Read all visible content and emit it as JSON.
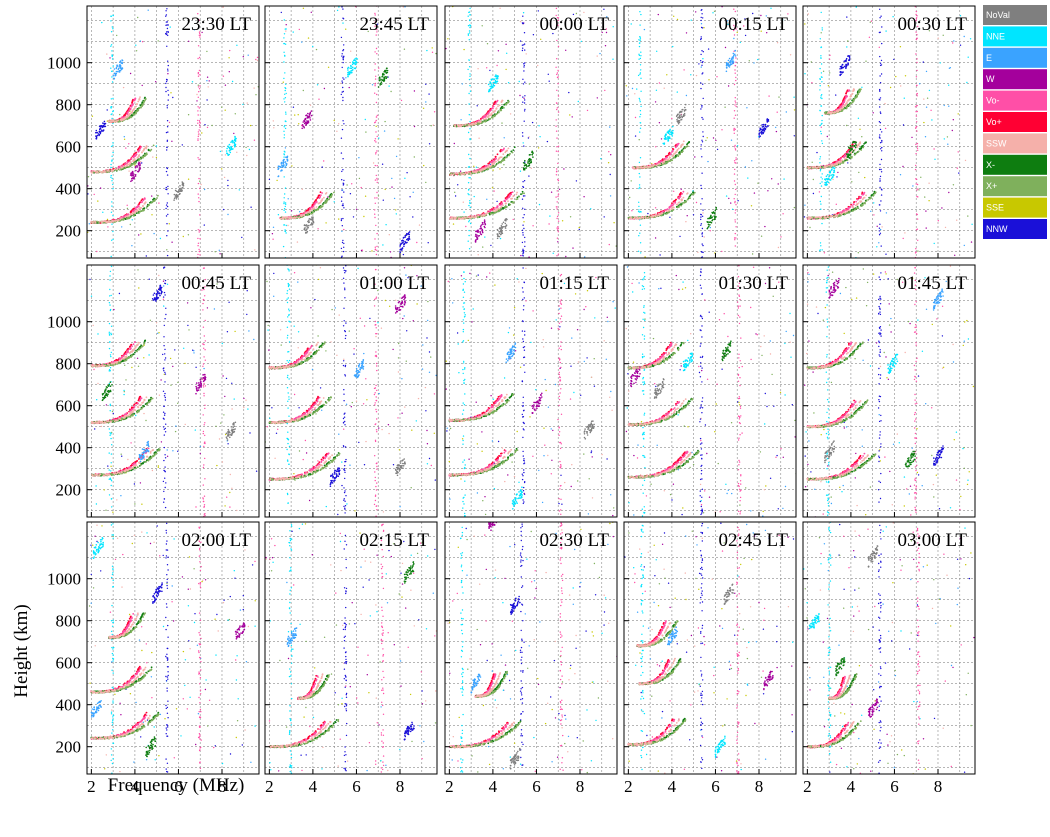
{
  "chart_data": {
    "type": "scatter",
    "subtype": "ionogram small multiples",
    "xlabel": "Frequency (MHz)",
    "ylabel": "Height (km)",
    "xlim": [
      1.8,
      9.7
    ],
    "ylim": [
      70,
      1270
    ],
    "x_ticks": [
      2,
      4,
      6,
      8
    ],
    "y_ticks": [
      200,
      400,
      600,
      800,
      1000
    ],
    "grid": true,
    "legend_position": "right-top",
    "legend": [
      {
        "name": "NoVal",
        "color": "#7f7f7f"
      },
      {
        "name": "NNE",
        "color": "#00e5ff"
      },
      {
        "name": "E",
        "color": "#3aa3ff"
      },
      {
        "name": "W",
        "color": "#a4009c"
      },
      {
        "name": "Vo-",
        "color": "#ff4fa7"
      },
      {
        "name": "Vo+",
        "color": "#ff0033"
      },
      {
        "name": "SSW",
        "color": "#f5b0aa"
      },
      {
        "name": "X-",
        "color": "#0e7d10"
      },
      {
        "name": "X+",
        "color": "#7fb05c"
      },
      {
        "name": "SSE",
        "color": "#c8c800"
      },
      {
        "name": "NNW",
        "color": "#1a10d8"
      }
    ],
    "panels": [
      {
        "label": "23:30 LT",
        "traces": [
          {
            "fmin": 2.0,
            "h0": 240,
            "fc": 4.5
          },
          {
            "fmin": 2.0,
            "h0": 480,
            "fc": 4.3
          },
          {
            "fmin": 2.8,
            "h0": 720,
            "fc": 4.0
          }
        ],
        "blocks": [
          [
            2.2,
            650
          ],
          [
            3.0,
            940
          ],
          [
            3.8,
            450
          ],
          [
            5.8,
            360
          ],
          [
            8.2,
            570
          ]
        ]
      },
      {
        "label": "23:45 LT",
        "traces": [
          {
            "fmin": 2.5,
            "h0": 260,
            "fc": 4.4
          }
        ],
        "blocks": [
          [
            2.4,
            480
          ],
          [
            3.5,
            700
          ],
          [
            3.6,
            200
          ],
          [
            5.6,
            950
          ],
          [
            7.0,
            900
          ],
          [
            8.0,
            120
          ]
        ]
      },
      {
        "label": "00:00 LT",
        "traces": [
          {
            "fmin": 2.0,
            "h0": 260,
            "fc": 4.9
          },
          {
            "fmin": 2.0,
            "h0": 470,
            "fc": 4.5
          },
          {
            "fmin": 2.2,
            "h0": 700,
            "fc": 4.2
          }
        ],
        "blocks": [
          [
            3.2,
            170
          ],
          [
            4.2,
            180
          ],
          [
            3.8,
            880
          ],
          [
            5.4,
            500
          ]
        ]
      },
      {
        "label": "00:15 LT",
        "traces": [
          {
            "fmin": 2.0,
            "h0": 260,
            "fc": 4.5
          },
          {
            "fmin": 2.2,
            "h0": 500,
            "fc": 4.3
          }
        ],
        "blocks": [
          [
            4.2,
            720
          ],
          [
            3.6,
            620
          ],
          [
            5.6,
            230
          ],
          [
            8.0,
            660
          ],
          [
            6.5,
            980
          ]
        ]
      },
      {
        "label": "00:30 LT",
        "traces": [
          {
            "fmin": 2.0,
            "h0": 260,
            "fc": 4.6
          },
          {
            "fmin": 2.0,
            "h0": 500,
            "fc": 4.2
          },
          {
            "fmin": 2.8,
            "h0": 760,
            "fc": 3.9
          }
        ],
        "blocks": [
          [
            2.8,
            430
          ],
          [
            3.8,
            560
          ],
          [
            3.5,
            960
          ]
        ]
      },
      {
        "label": "00:45 LT",
        "traces": [
          {
            "fmin": 2.0,
            "h0": 270,
            "fc": 4.6
          },
          {
            "fmin": 2.0,
            "h0": 520,
            "fc": 4.3
          },
          {
            "fmin": 2.0,
            "h0": 790,
            "fc": 4.0
          }
        ],
        "blocks": [
          [
            2.5,
            640
          ],
          [
            4.8,
            1100
          ],
          [
            4.2,
            350
          ],
          [
            6.8,
            680
          ],
          [
            8.2,
            450
          ]
        ]
      },
      {
        "label": "01:00 LT",
        "traces": [
          {
            "fmin": 2.0,
            "h0": 250,
            "fc": 4.7
          },
          {
            "fmin": 2.0,
            "h0": 520,
            "fc": 4.3
          },
          {
            "fmin": 2.0,
            "h0": 780,
            "fc": 4.0
          }
        ],
        "blocks": [
          [
            4.8,
            240
          ],
          [
            5.9,
            740
          ],
          [
            7.8,
            1050
          ],
          [
            7.8,
            280
          ]
        ]
      },
      {
        "label": "01:15 LT",
        "traces": [
          {
            "fmin": 2.0,
            "h0": 270,
            "fc": 4.6
          },
          {
            "fmin": 2.0,
            "h0": 530,
            "fc": 4.4
          }
        ],
        "blocks": [
          [
            4.6,
            820
          ],
          [
            5.8,
            580
          ],
          [
            8.2,
            460
          ],
          [
            4.9,
            130
          ]
        ]
      },
      {
        "label": "01:30 LT",
        "traces": [
          {
            "fmin": 2.0,
            "h0": 260,
            "fc": 4.7
          },
          {
            "fmin": 2.0,
            "h0": 510,
            "fc": 4.4
          },
          {
            "fmin": 2.0,
            "h0": 780,
            "fc": 4.0
          }
        ],
        "blocks": [
          [
            2.1,
            710
          ],
          [
            3.2,
            650
          ],
          [
            4.5,
            780
          ],
          [
            6.3,
            830
          ]
        ]
      },
      {
        "label": "01:45 LT",
        "traces": [
          {
            "fmin": 2.0,
            "h0": 250,
            "fc": 4.6
          },
          {
            "fmin": 2.0,
            "h0": 500,
            "fc": 4.2
          },
          {
            "fmin": 2.0,
            "h0": 780,
            "fc": 4.0
          }
        ],
        "blocks": [
          [
            2.8,
            350
          ],
          [
            5.7,
            770
          ],
          [
            6.5,
            310
          ],
          [
            7.8,
            330
          ],
          [
            7.8,
            1080
          ],
          [
            3.0,
            1130
          ]
        ]
      },
      {
        "label": "02:00 LT",
        "traces": [
          {
            "fmin": 2.0,
            "h0": 240,
            "fc": 4.6
          },
          {
            "fmin": 2.0,
            "h0": 460,
            "fc": 4.3
          },
          {
            "fmin": 2.8,
            "h0": 720,
            "fc": 3.9
          }
        ],
        "blocks": [
          [
            2.1,
            1120
          ],
          [
            4.5,
            170
          ],
          [
            4.8,
            900
          ],
          [
            2.0,
            350
          ],
          [
            8.6,
            720
          ]
        ]
      },
      {
        "label": "02:15 LT",
        "traces": [
          {
            "fmin": 2.0,
            "h0": 200,
            "fc": 4.6
          },
          {
            "fmin": 3.3,
            "h0": 430,
            "fc": 4.2
          }
        ],
        "blocks": [
          [
            8.2,
            1000
          ],
          [
            8.2,
            250
          ],
          [
            2.8,
            690
          ]
        ]
      },
      {
        "label": "02:30 LT",
        "traces": [
          {
            "fmin": 2.0,
            "h0": 200,
            "fc": 4.8
          },
          {
            "fmin": 3.2,
            "h0": 440,
            "fc": 4.1
          }
        ],
        "blocks": [
          [
            4.8,
            850
          ],
          [
            3.0,
            480
          ],
          [
            3.8,
            1240
          ],
          [
            4.8,
            110
          ]
        ]
      },
      {
        "label": "02:45 LT",
        "traces": [
          {
            "fmin": 2.0,
            "h0": 210,
            "fc": 4.1
          },
          {
            "fmin": 2.5,
            "h0": 500,
            "fc": 3.9
          },
          {
            "fmin": 2.4,
            "h0": 680,
            "fc": 3.7
          }
        ],
        "blocks": [
          [
            3.8,
            700
          ],
          [
            8.2,
            490
          ],
          [
            6.4,
            900
          ],
          [
            6.0,
            170
          ]
        ]
      },
      {
        "label": "03:00 LT",
        "traces": [
          {
            "fmin": 2.0,
            "h0": 200,
            "fc": 3.9
          },
          {
            "fmin": 3.0,
            "h0": 430,
            "fc": 3.7
          }
        ],
        "blocks": [
          [
            4.8,
            350
          ],
          [
            4.8,
            1080
          ],
          [
            2.1,
            760
          ],
          [
            3.3,
            560
          ]
        ]
      }
    ]
  }
}
